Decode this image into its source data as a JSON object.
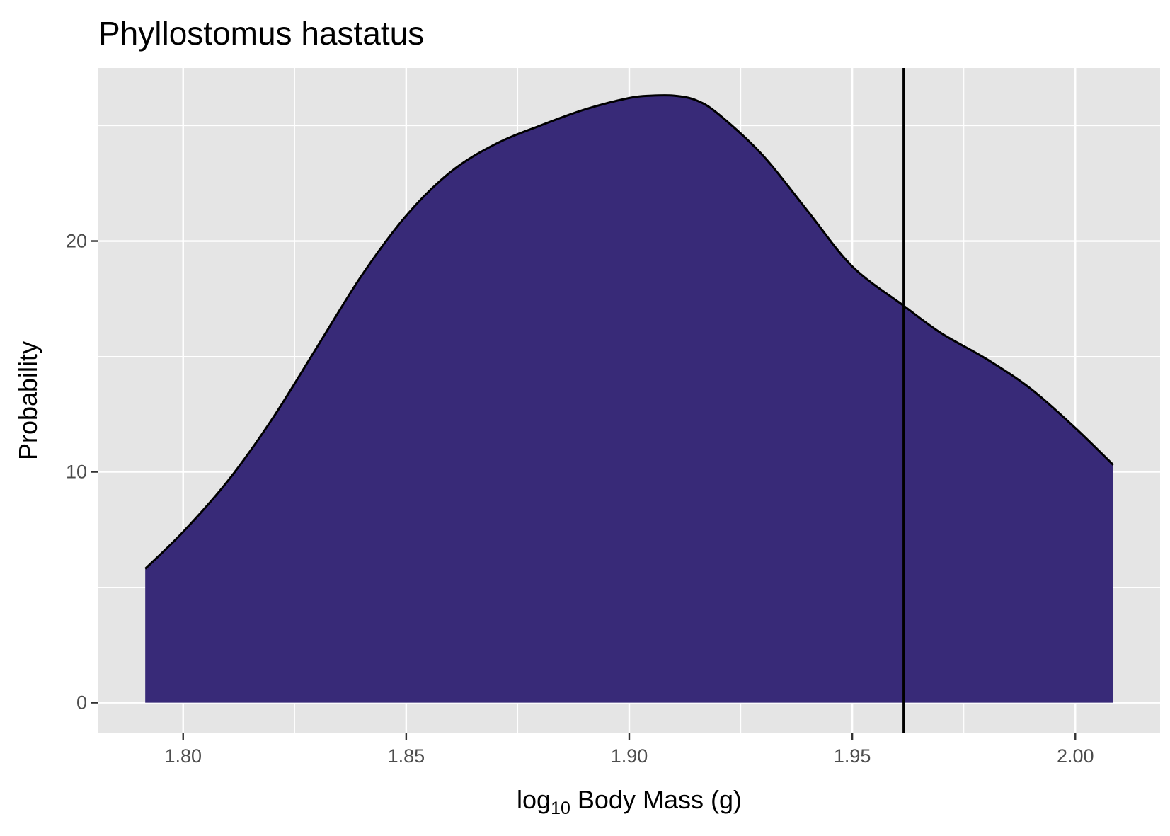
{
  "chart_data": {
    "type": "area",
    "title": "Phyllostomus hastatus",
    "xlabel": {
      "prefix": "log",
      "subscript": "10",
      "suffix": " Body Mass (g)"
    },
    "ylabel": "Probability",
    "xlim": [
      1.781,
      2.019
    ],
    "ylim": [
      -1.3,
      27.5
    ],
    "x_ticks": [
      1.8,
      1.85,
      1.9,
      1.95,
      2.0
    ],
    "x_tick_labels": [
      "1.80",
      "1.85",
      "1.90",
      "1.95",
      "2.00"
    ],
    "y_ticks": [
      0,
      10,
      20
    ],
    "y_tick_labels": [
      "0",
      "10",
      "20"
    ],
    "x_minor_breaks": [
      1.825,
      1.875,
      1.925,
      1.975
    ],
    "y_minor_breaks": [
      5,
      15,
      25
    ],
    "grid": true,
    "legend": "none",
    "series": [
      {
        "x": [
          1.7915,
          1.8,
          1.81,
          1.82,
          1.83,
          1.84,
          1.85,
          1.86,
          1.87,
          1.88,
          1.89,
          1.9,
          1.905,
          1.91,
          1.915,
          1.92,
          1.93,
          1.94,
          1.95,
          1.9615,
          1.97,
          1.98,
          1.99,
          2.0,
          2.0085
        ],
        "y": [
          5.8,
          7.4,
          9.6,
          12.3,
          15.4,
          18.5,
          21.1,
          23.0,
          24.2,
          25.0,
          25.7,
          26.2,
          26.3,
          26.3,
          26.1,
          25.5,
          23.7,
          21.3,
          18.9,
          17.2,
          16.0,
          14.9,
          13.6,
          11.9,
          10.3
        ]
      }
    ],
    "vline": 1.9615,
    "colors": {
      "fill": "#382a78",
      "outline": "#000000",
      "panel": "#e5e5e5",
      "grid": "#ffffff",
      "vline": "#000000"
    }
  }
}
